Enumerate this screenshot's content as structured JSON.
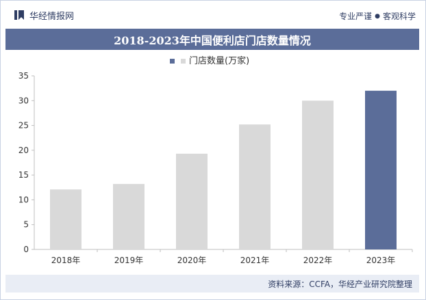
{
  "header": {
    "brand_name": "华经情报网",
    "slogan_part1": "专业严谨",
    "slogan_separator": "●",
    "slogan_part2": "客观科学",
    "logo_icon": "bookmark-logo-icon"
  },
  "title": "2018-2023年中国便利店门店数量情况",
  "footer": {
    "source": "资料来源：CCFA，华经产业研究院整理"
  },
  "colors": {
    "bar_default": "#d9d9d9",
    "bar_highlight": "#5b6d99",
    "title_bg": "#5b6d99",
    "footer_bg": "#e9edf5",
    "text_dark": "#2f3d63"
  },
  "chart_data": {
    "type": "bar",
    "categories": [
      "2018年",
      "2019年",
      "2020年",
      "2021年",
      "2022年",
      "2023年"
    ],
    "series": [
      {
        "name": "门店数量(万家)",
        "values": [
          12.1,
          13.2,
          19.3,
          25.2,
          30.0,
          32.0
        ]
      }
    ],
    "highlight_index": 5,
    "ylim": [
      0,
      35
    ],
    "yticks": [
      0,
      5,
      10,
      15,
      20,
      25,
      30,
      35
    ],
    "legend_position": "top-center",
    "grid": false
  }
}
